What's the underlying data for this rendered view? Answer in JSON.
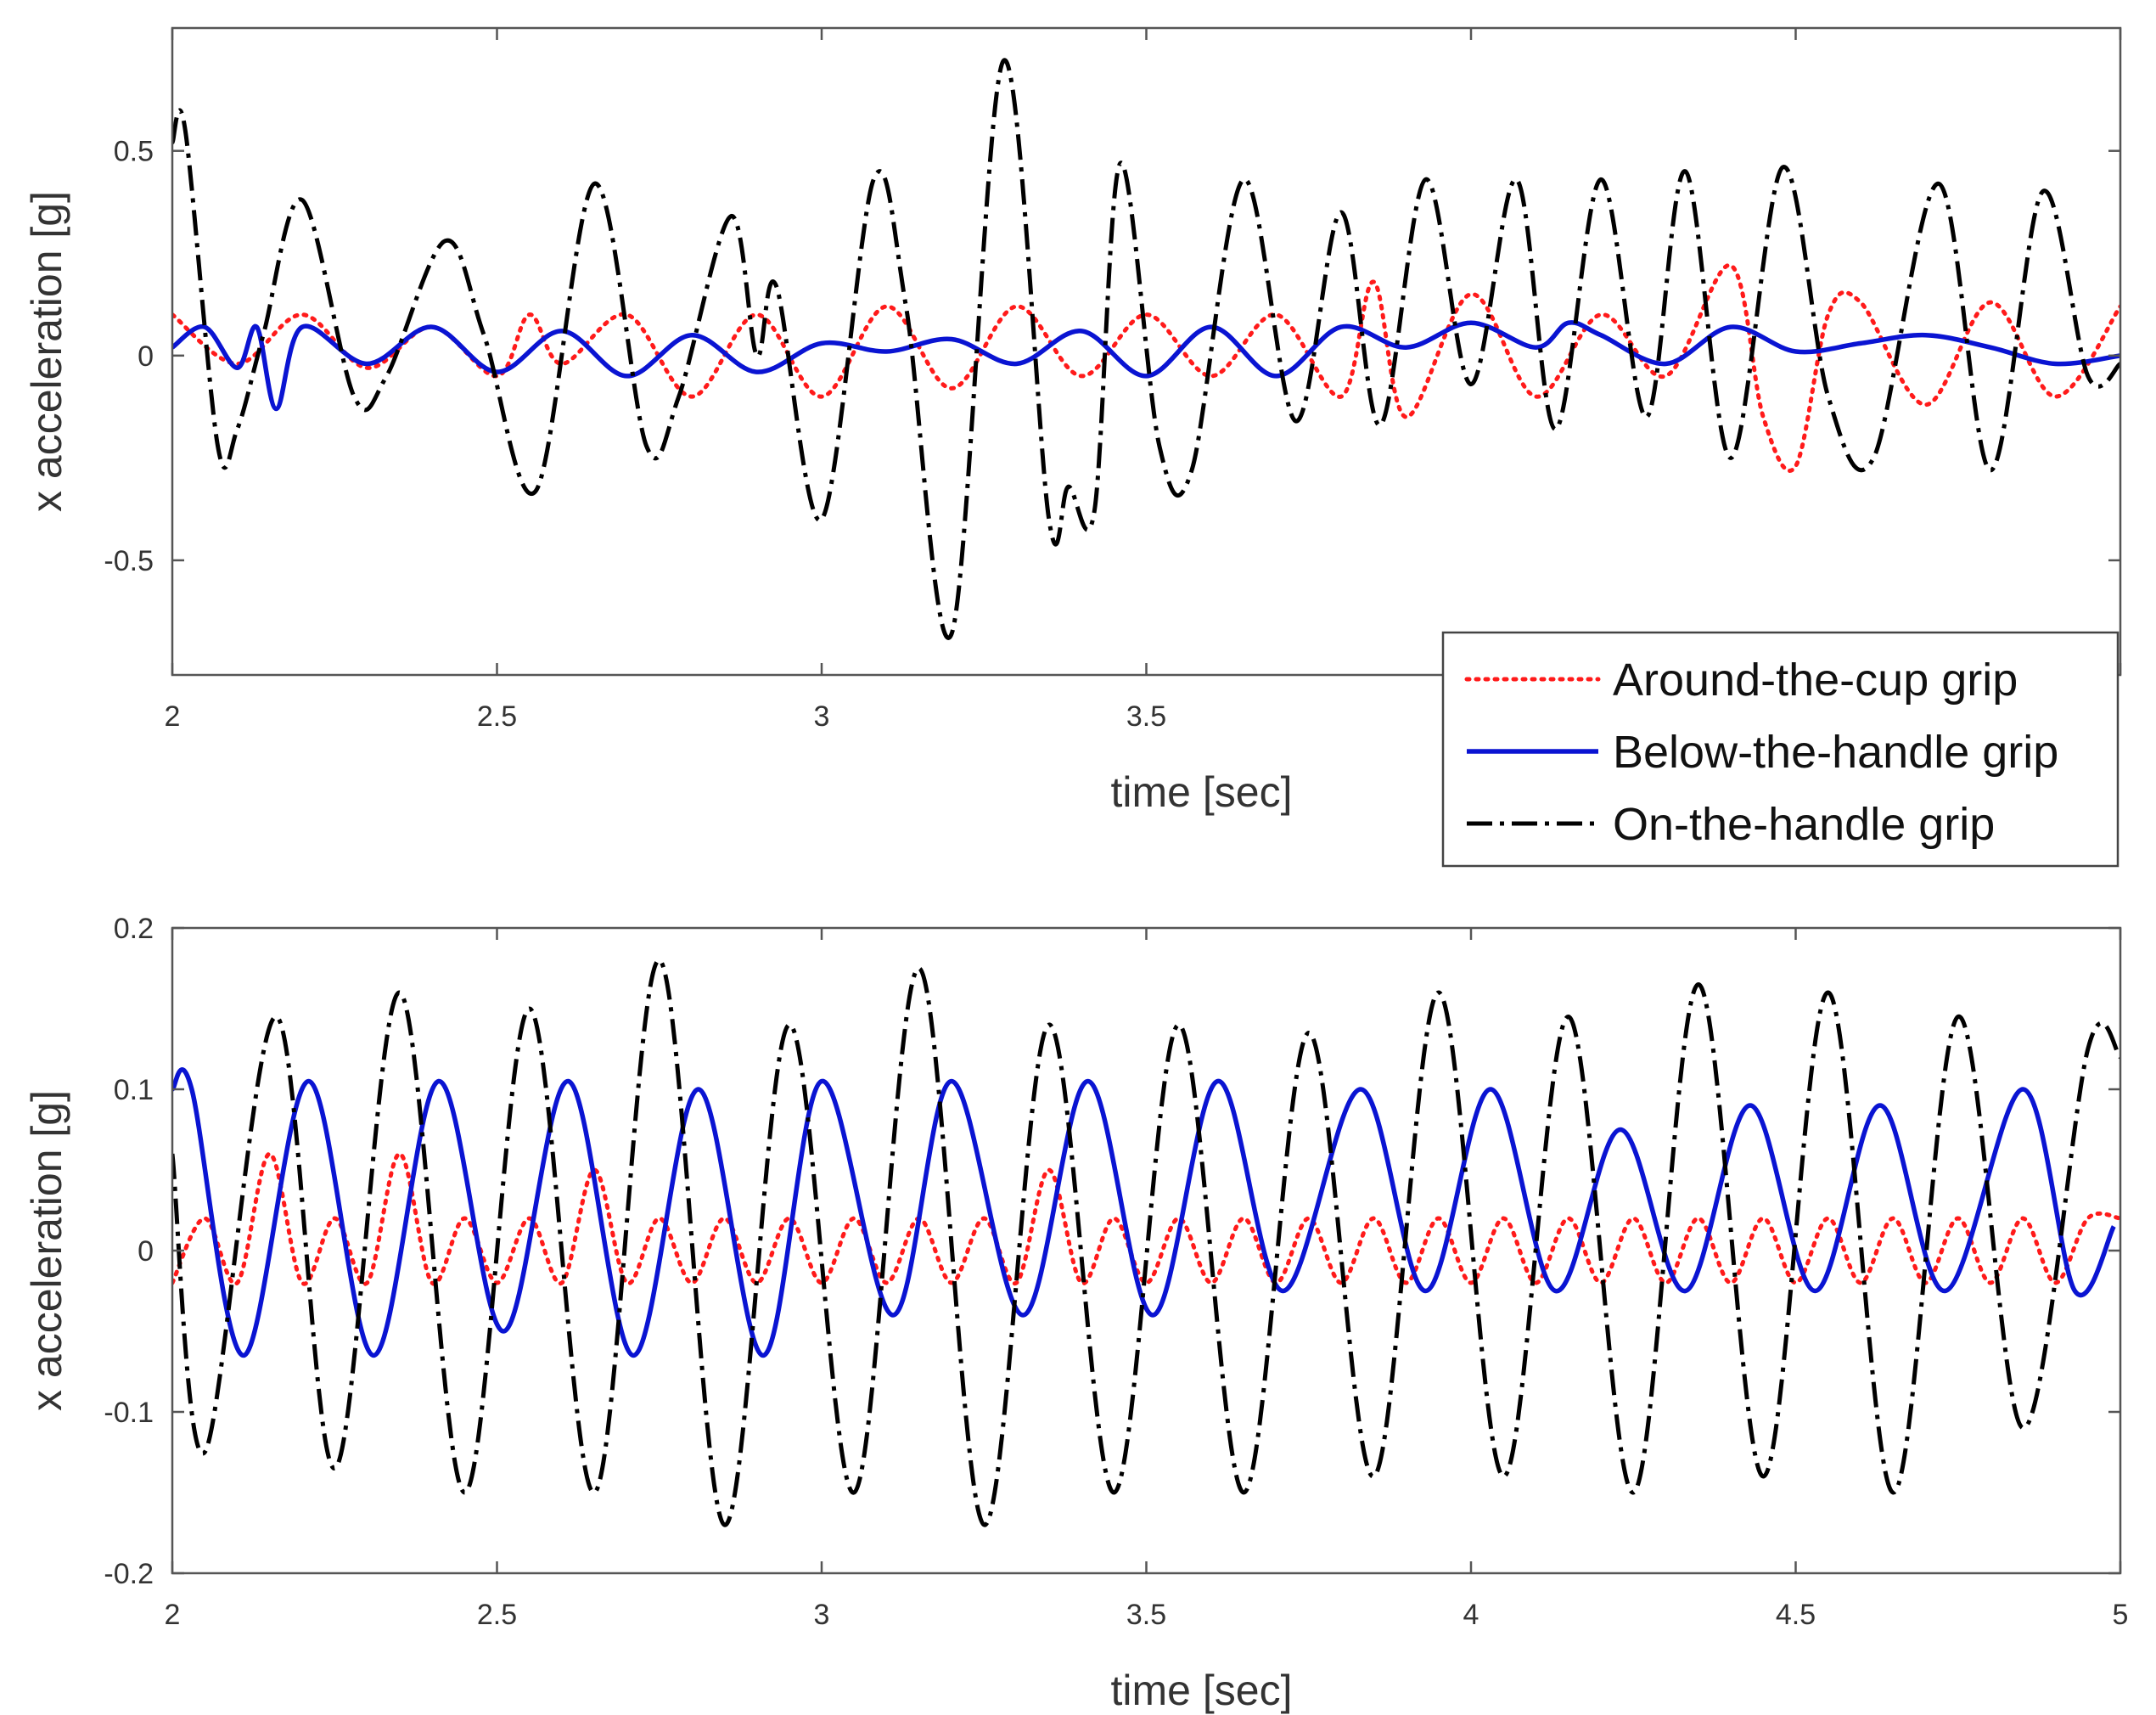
{
  "colors": {
    "around": "#ff1a1a",
    "below": "#0a14d2",
    "on": "#000000",
    "axes": "#555555",
    "tick_text": "#333333",
    "label_text": "#333333",
    "legend_border": "#444444"
  },
  "legend": {
    "placement": "between-panels-right",
    "entries": [
      {
        "key": "around",
        "label": "Around-the-cup grip",
        "style": "dotted"
      },
      {
        "key": "below",
        "label": "Below-the-handle grip",
        "style": "solid"
      },
      {
        "key": "on",
        "label": "On-the-handle grip",
        "style": "dash-dot"
      }
    ]
  },
  "chart_data": [
    {
      "type": "line",
      "title": "",
      "xlabel": "time [sec]",
      "ylabel": "x acceleration [g]",
      "xlim": [
        2,
        5
      ],
      "ylim": [
        -0.78,
        0.8
      ],
      "xticks": [
        2,
        2.5,
        3,
        3.5,
        4,
        4.5,
        5
      ],
      "xtick_labels": [
        "2",
        "2.5",
        "3",
        "3.5",
        "",
        "",
        ""
      ],
      "yticks": [
        -0.5,
        0,
        0.5
      ],
      "ytick_labels": [
        "-0.5",
        "0",
        "0.5"
      ],
      "grid": false,
      "series": [
        {
          "name": "Around-the-cup grip",
          "key": "around",
          "x": [
            2.0,
            2.1,
            2.2,
            2.3,
            2.4,
            2.5,
            2.55,
            2.6,
            2.7,
            2.8,
            2.9,
            3.0,
            3.1,
            3.2,
            3.3,
            3.4,
            3.5,
            3.6,
            3.7,
            3.8,
            3.85,
            3.9,
            4.0,
            4.1,
            4.2,
            4.3,
            4.4,
            4.45,
            4.5,
            4.55,
            4.6,
            4.7,
            4.8,
            4.9,
            5.0
          ],
          "y": [
            0.1,
            -0.02,
            0.1,
            -0.03,
            0.07,
            -0.05,
            0.1,
            -0.02,
            0.1,
            -0.1,
            0.1,
            -0.1,
            0.12,
            -0.08,
            0.12,
            -0.05,
            0.1,
            -0.05,
            0.1,
            -0.1,
            0.18,
            -0.15,
            0.15,
            -0.1,
            0.1,
            -0.05,
            0.22,
            -0.15,
            -0.27,
            0.1,
            0.13,
            -0.12,
            0.13,
            -0.1,
            0.12
          ]
        },
        {
          "name": "Below-the-handle grip",
          "key": "below",
          "x": [
            2.0,
            2.05,
            2.1,
            2.13,
            2.16,
            2.2,
            2.3,
            2.4,
            2.5,
            2.6,
            2.7,
            2.8,
            2.9,
            3.0,
            3.1,
            3.2,
            3.3,
            3.4,
            3.5,
            3.6,
            3.7,
            3.8,
            3.9,
            4.0,
            4.1,
            4.15,
            4.2,
            4.3,
            4.4,
            4.5,
            4.6,
            4.7,
            4.8,
            4.9,
            5.0
          ],
          "y": [
            0.02,
            0.07,
            -0.03,
            0.07,
            -0.13,
            0.07,
            -0.02,
            0.07,
            -0.04,
            0.06,
            -0.05,
            0.05,
            -0.04,
            0.03,
            0.01,
            0.04,
            -0.02,
            0.06,
            -0.05,
            0.07,
            -0.05,
            0.07,
            0.02,
            0.08,
            0.02,
            0.08,
            0.05,
            -0.02,
            0.07,
            0.01,
            0.03,
            0.05,
            0.02,
            -0.02,
            0.0
          ]
        },
        {
          "name": "On-the-handle grip",
          "key": "on",
          "x": [
            2.0,
            2.02,
            2.07,
            2.1,
            2.14,
            2.2,
            2.28,
            2.33,
            2.42,
            2.48,
            2.56,
            2.65,
            2.73,
            2.78,
            2.86,
            2.9,
            2.93,
            3.0,
            3.08,
            3.13,
            3.2,
            3.28,
            3.35,
            3.38,
            3.42,
            3.46,
            3.52,
            3.57,
            3.65,
            3.73,
            3.8,
            3.86,
            3.93,
            4.0,
            4.07,
            4.13,
            4.2,
            4.27,
            4.33,
            4.4,
            4.48,
            4.55,
            4.62,
            4.72,
            4.8,
            4.88,
            4.95,
            5.0
          ],
          "y": [
            0.52,
            0.55,
            -0.22,
            -0.18,
            0.05,
            0.38,
            -0.1,
            -0.05,
            0.28,
            0.05,
            -0.33,
            0.42,
            -0.22,
            -0.1,
            0.34,
            0.0,
            0.17,
            -0.4,
            0.43,
            0.12,
            -0.68,
            0.72,
            -0.4,
            -0.32,
            -0.38,
            0.47,
            -0.22,
            -0.28,
            0.43,
            -0.16,
            0.35,
            -0.17,
            0.43,
            -0.07,
            0.43,
            -0.18,
            0.43,
            -0.15,
            0.45,
            -0.25,
            0.46,
            -0.1,
            -0.25,
            0.42,
            -0.28,
            0.4,
            -0.05,
            -0.02
          ]
        }
      ]
    },
    {
      "type": "line",
      "title": "",
      "xlabel": "time [sec]",
      "ylabel": "x acceleration [g]",
      "xlim": [
        2,
        5
      ],
      "ylim": [
        -0.2,
        0.2
      ],
      "xticks": [
        2,
        2.5,
        3,
        3.5,
        4,
        4.5,
        5
      ],
      "xtick_labels": [
        "2",
        "2.5",
        "3",
        "3.5",
        "4",
        "4.5",
        "5"
      ],
      "yticks": [
        -0.2,
        -0.1,
        0,
        0.1,
        0.2
      ],
      "ytick_labels": [
        "-0.2",
        "-0.1",
        "0",
        "0.1",
        "0.2"
      ],
      "grid": false,
      "series": [
        {
          "name": "Around-the-cup grip",
          "key": "around",
          "x": [
            2.0,
            2.05,
            2.1,
            2.15,
            2.2,
            2.25,
            2.3,
            2.35,
            2.4,
            2.45,
            2.5,
            2.55,
            2.6,
            2.65,
            2.7,
            2.75,
            2.8,
            2.85,
            2.9,
            2.95,
            3.0,
            3.05,
            3.1,
            3.15,
            3.2,
            3.25,
            3.3,
            3.35,
            3.4,
            3.45,
            3.5,
            3.55,
            3.6,
            3.65,
            3.7,
            3.75,
            3.8,
            3.85,
            3.9,
            3.95,
            4.0,
            4.05,
            4.1,
            4.15,
            4.2,
            4.25,
            4.3,
            4.35,
            4.4,
            4.45,
            4.5,
            4.55,
            4.6,
            4.65,
            4.7,
            4.75,
            4.8,
            4.85,
            4.9,
            4.95,
            5.0
          ],
          "y": [
            -0.02,
            0.02,
            -0.02,
            0.06,
            -0.02,
            0.02,
            -0.02,
            0.06,
            -0.02,
            0.02,
            -0.02,
            0.02,
            -0.02,
            0.05,
            -0.02,
            0.02,
            -0.02,
            0.02,
            -0.02,
            0.02,
            -0.02,
            0.02,
            -0.02,
            0.02,
            -0.02,
            0.02,
            -0.02,
            0.05,
            -0.02,
            0.02,
            -0.02,
            0.02,
            -0.02,
            0.02,
            -0.02,
            0.02,
            -0.02,
            0.02,
            -0.02,
            0.02,
            -0.02,
            0.02,
            -0.02,
            0.02,
            -0.02,
            0.02,
            -0.02,
            0.02,
            -0.02,
            0.02,
            -0.02,
            0.02,
            -0.02,
            0.02,
            -0.02,
            0.02,
            -0.02,
            0.02,
            -0.02,
            0.02,
            0.02
          ]
        },
        {
          "name": "Below-the-handle grip",
          "key": "below",
          "x": [
            2.0,
            2.03,
            2.11,
            2.21,
            2.31,
            2.41,
            2.51,
            2.61,
            2.71,
            2.81,
            2.91,
            3.0,
            3.11,
            3.2,
            3.31,
            3.41,
            3.51,
            3.61,
            3.71,
            3.83,
            3.93,
            4.03,
            4.13,
            4.23,
            4.33,
            4.43,
            4.53,
            4.63,
            4.73,
            4.85,
            4.93,
            4.99
          ],
          "y": [
            0.1,
            0.1,
            -0.065,
            0.105,
            -0.065,
            0.105,
            -0.05,
            0.105,
            -0.065,
            0.1,
            -0.065,
            0.105,
            -0.04,
            0.105,
            -0.04,
            0.105,
            -0.04,
            0.105,
            -0.025,
            0.1,
            -0.025,
            0.1,
            -0.025,
            0.075,
            -0.025,
            0.09,
            -0.025,
            0.09,
            -0.025,
            0.1,
            -0.025,
            0.015
          ]
        },
        {
          "name": "On-the-handle grip",
          "key": "on",
          "x": [
            2.0,
            2.05,
            2.16,
            2.25,
            2.35,
            2.45,
            2.55,
            2.65,
            2.75,
            2.85,
            2.95,
            3.05,
            3.15,
            3.25,
            3.35,
            3.45,
            3.55,
            3.65,
            3.75,
            3.85,
            3.95,
            4.05,
            4.15,
            4.25,
            4.35,
            4.45,
            4.55,
            4.65,
            4.75,
            4.85,
            4.95,
            5.0
          ],
          "y": [
            0.06,
            -0.125,
            0.145,
            -0.135,
            0.16,
            -0.15,
            0.15,
            -0.15,
            0.18,
            -0.17,
            0.14,
            -0.15,
            0.175,
            -0.17,
            0.14,
            -0.15,
            0.14,
            -0.15,
            0.135,
            -0.14,
            0.16,
            -0.14,
            0.145,
            -0.15,
            0.165,
            -0.14,
            0.16,
            -0.15,
            0.145,
            -0.11,
            0.125,
            0.12
          ]
        }
      ]
    }
  ]
}
